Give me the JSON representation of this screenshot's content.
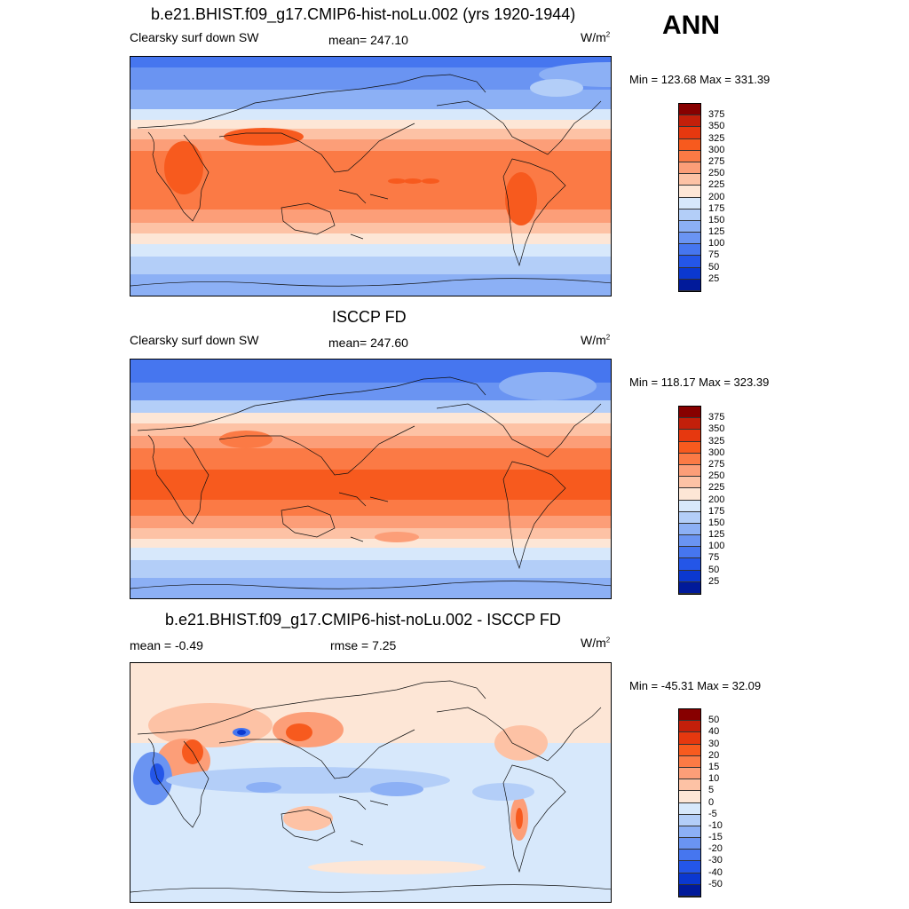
{
  "season": "ANN",
  "panels": [
    {
      "id": "model",
      "title": "b.e21.BHIST.f09_g17.CMIP6-hist-noLu.002 (yrs 1920-1944)",
      "left_label": "Clearsky surf down SW",
      "center_label": "mean= 247.10",
      "units": "W/m",
      "units_sup": "2",
      "minmax": "Min = 123.68 Max = 331.39",
      "colorbar_colors": [
        "#870000",
        "#c31f0a",
        "#e6380f",
        "#f75a1e",
        "#fb7a45",
        "#fc9e78",
        "#fdc2a5",
        "#fde6d6",
        "#d7e8fb",
        "#b3cef8",
        "#8cb0f5",
        "#6a94f2",
        "#4676ef",
        "#2456e8",
        "#0b38d0",
        "#011a9a"
      ],
      "colorbar_ticks": [
        "375",
        "350",
        "325",
        "300",
        "275",
        "250",
        "225",
        "200",
        "175",
        "150",
        "125",
        "100",
        "75",
        "50",
        "25"
      ]
    },
    {
      "id": "obs",
      "title": "ISCCP FD",
      "left_label": "Clearsky surf down SW",
      "center_label": "mean= 247.60",
      "units": "W/m",
      "units_sup": "2",
      "minmax": "Min = 118.17 Max = 323.39",
      "colorbar_colors": [
        "#870000",
        "#c31f0a",
        "#e6380f",
        "#f75a1e",
        "#fb7a45",
        "#fc9e78",
        "#fdc2a5",
        "#fde6d6",
        "#d7e8fb",
        "#b3cef8",
        "#8cb0f5",
        "#6a94f2",
        "#4676ef",
        "#2456e8",
        "#0b38d0",
        "#011a9a"
      ],
      "colorbar_ticks": [
        "375",
        "350",
        "325",
        "300",
        "275",
        "250",
        "225",
        "200",
        "175",
        "150",
        "125",
        "100",
        "75",
        "50",
        "25"
      ]
    },
    {
      "id": "diff",
      "title": "b.e21.BHIST.f09_g17.CMIP6-hist-noLu.002 - ISCCP FD",
      "left_label": "mean =  -0.49",
      "center_label": "rmse =   7.25",
      "units": "W/m",
      "units_sup": "2",
      "minmax": "Min = -45.31 Max =  32.09",
      "colorbar_colors": [
        "#870000",
        "#c31f0a",
        "#e6380f",
        "#f75a1e",
        "#fb7a45",
        "#fc9e78",
        "#fdc2a5",
        "#fde6d6",
        "#d7e8fb",
        "#b3cef8",
        "#8cb0f5",
        "#6a94f2",
        "#4676ef",
        "#2456e8",
        "#0b38d0",
        "#011a9a"
      ],
      "colorbar_ticks": [
        "50",
        "40",
        "30",
        "20",
        "15",
        "10",
        "5",
        "0",
        "-5",
        "-10",
        "-15",
        "-20",
        "-30",
        "-40",
        "-50"
      ]
    }
  ]
}
